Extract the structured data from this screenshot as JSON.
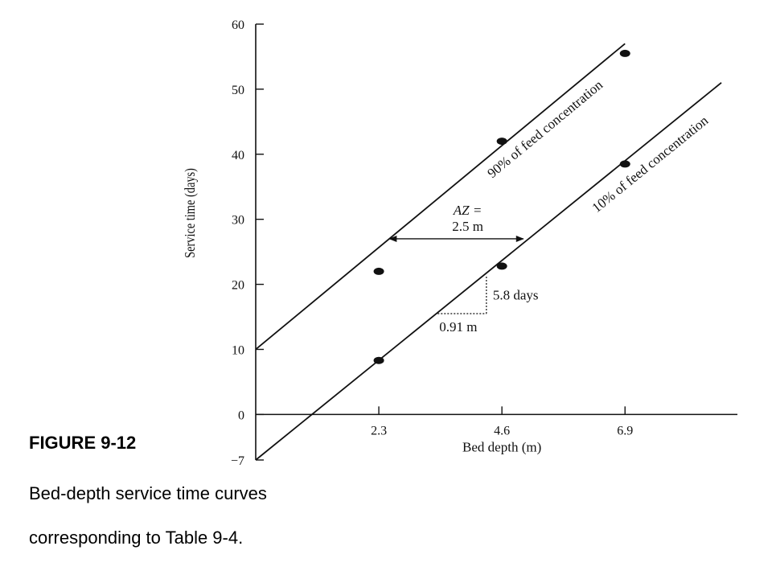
{
  "chart_data": {
    "type": "line",
    "xlabel": "Bed depth (m)",
    "ylabel": "Service time (days)",
    "xlim": [
      0,
      9.0
    ],
    "ylim": [
      -7,
      60
    ],
    "x_ticks": [
      2.3,
      4.6,
      6.9
    ],
    "x_tick_labels": [
      "2.3",
      "4.6",
      "6.9"
    ],
    "y_ticks": [
      -7,
      0,
      10,
      20,
      30,
      40,
      50,
      60
    ],
    "y_tick_labels": [
      "−7",
      "0",
      "10",
      "20",
      "30",
      "40",
      "50",
      "60"
    ],
    "series": [
      {
        "name": "90% of feed concentration",
        "line": [
          [
            0,
            10
          ],
          [
            6.9,
            57
          ]
        ],
        "points": [
          [
            2.3,
            22
          ],
          [
            4.6,
            42
          ],
          [
            6.9,
            55.5
          ]
        ]
      },
      {
        "name": "10% of feed concentration",
        "line": [
          [
            0,
            -7
          ],
          [
            8.7,
            51
          ]
        ],
        "points": [
          [
            2.3,
            8.3
          ],
          [
            4.6,
            22.8
          ],
          [
            6.9,
            38.5
          ]
        ]
      }
    ],
    "annotations": {
      "az_line1": "AZ =",
      "az_line2": "2.5 m",
      "az_y": 27,
      "az_x_from": 2.5,
      "az_x_to": 5.0,
      "slope_rise_label": "5.8 days",
      "slope_run_label": "0.91 m",
      "slope_x_from": 3.4,
      "slope_x_to": 4.31,
      "slope_y_from": 15.5,
      "slope_y_to": 21.3
    },
    "grid": false
  },
  "caption": {
    "title": "FIGURE 9-12",
    "line1": "Bed-depth service time curves",
    "line2": "corresponding to Table 9-4."
  }
}
